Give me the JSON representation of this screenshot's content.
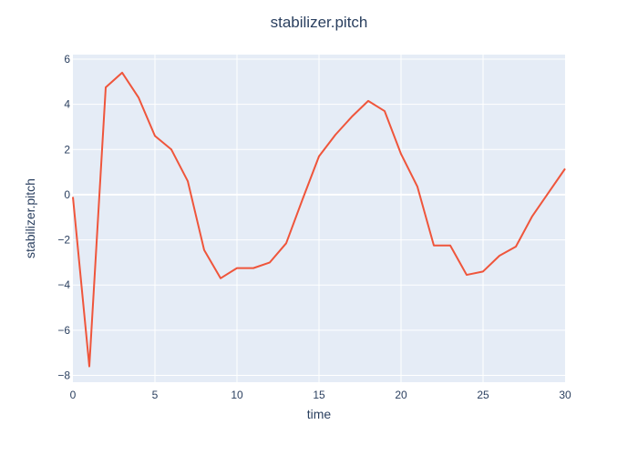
{
  "chart_data": {
    "type": "line",
    "title": "stabilizer.pitch",
    "xlabel": "time",
    "ylabel": "stabilizer.pitch",
    "xlim": [
      0,
      30
    ],
    "ylim": [
      -8.3,
      6.2
    ],
    "x_ticks": [
      0,
      5,
      10,
      15,
      20,
      25,
      30
    ],
    "y_ticks": [
      -8,
      -6,
      -4,
      -2,
      0,
      2,
      4,
      6
    ],
    "x_tick_labels": [
      "0",
      "5",
      "10",
      "15",
      "20",
      "25",
      "30"
    ],
    "y_tick_labels": [
      "−8",
      "−6",
      "−4",
      "−2",
      "0",
      "2",
      "4",
      "6"
    ],
    "grid": true,
    "legend": "none",
    "series": [
      {
        "color": "#EF553B",
        "x": [
          0,
          1,
          2,
          3,
          4,
          5,
          6,
          7,
          8,
          9,
          10,
          11,
          12,
          13,
          14,
          15,
          16,
          17,
          18,
          19,
          20,
          21,
          22,
          23,
          24,
          25,
          26,
          27,
          28,
          29,
          30
        ],
        "y": [
          -0.1,
          -7.6,
          4.75,
          5.4,
          4.3,
          2.6,
          2.0,
          0.6,
          -2.45,
          -3.7,
          -3.25,
          -3.25,
          -3.0,
          -2.15,
          -0.2,
          1.7,
          2.65,
          3.45,
          4.15,
          3.7,
          1.8,
          0.35,
          -2.25,
          -2.25,
          -3.55,
          -3.4,
          -2.7,
          -2.3,
          -0.95,
          0.1,
          1.15
        ]
      }
    ]
  }
}
